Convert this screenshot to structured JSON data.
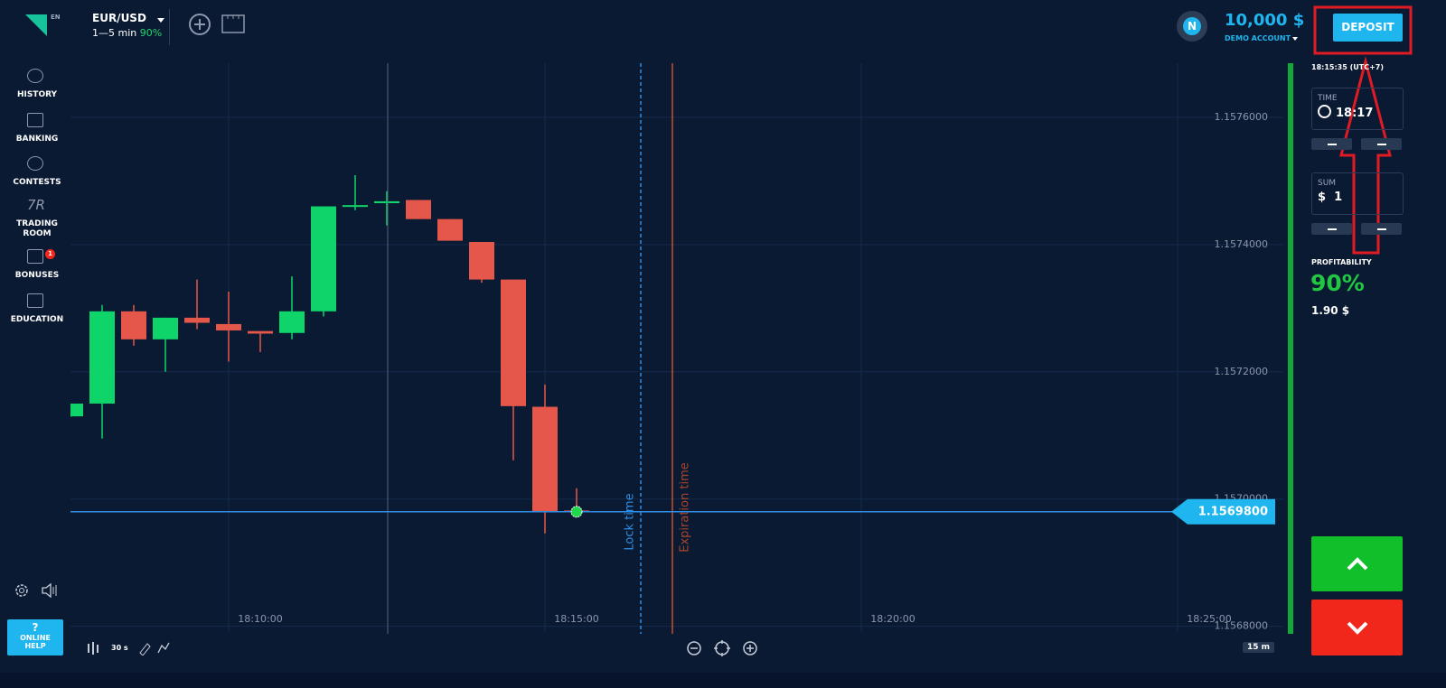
{
  "header": {
    "lang": "EN",
    "pair": "EUR/USD",
    "duration": "1—5 min",
    "payout": "90%",
    "avatar": "N",
    "balance": "10,000 $",
    "account": "DEMO ACCOUNT",
    "deposit": "DEPOSIT"
  },
  "sidebar": {
    "items": [
      "HISTORY",
      "BANKING",
      "CONTESTS",
      "TRADING ROOM",
      "BONUSES",
      "EDUCATION"
    ],
    "tr_icon": "7R",
    "bonus_badge": "1",
    "help_icon": "?",
    "help": "ONLINE HELP"
  },
  "chart": {
    "type": "candlestick",
    "ylim": [
      1.156791,
      1.157685
    ],
    "yticks": [
      {
        "value": 1.1576,
        "label": "1.1576000"
      },
      {
        "value": 1.1574,
        "label": "1.1574000"
      },
      {
        "value": 1.1572,
        "label": "1.1572000"
      },
      {
        "value": 1.157,
        "label": "1.1570000"
      },
      {
        "value": 1.1568,
        "label": "1.1568000"
      }
    ],
    "x_labels": [
      "18:10:00",
      "18:15:00",
      "18:20:00",
      "18:25:00"
    ],
    "current": {
      "value": 1.15698,
      "label": "1.1569800"
    },
    "lock_label": "Lock time",
    "expiry_label": "Expiration time",
    "up_color": "#0fd46a",
    "down_color": "#e4574a",
    "candles": [
      {
        "o": 1.15713,
        "h": 1.15715,
        "l": 1.157129,
        "c": 1.15715
      },
      {
        "o": 1.15715,
        "h": 1.157305,
        "l": 1.157095,
        "c": 1.157295
      },
      {
        "o": 1.157295,
        "h": 1.157305,
        "l": 1.157241,
        "c": 1.157251
      },
      {
        "o": 1.157251,
        "h": 1.157285,
        "l": 1.1572,
        "c": 1.157285
      },
      {
        "o": 1.157285,
        "h": 1.157345,
        "l": 1.157267,
        "c": 1.157277
      },
      {
        "o": 1.157275,
        "h": 1.157326,
        "l": 1.157216,
        "c": 1.157265
      },
      {
        "o": 1.157264,
        "h": 1.157264,
        "l": 1.157231,
        "c": 1.15726
      },
      {
        "o": 1.157261,
        "h": 1.15735,
        "l": 1.157251,
        "c": 1.157295
      },
      {
        "o": 1.157295,
        "h": 1.15746,
        "l": 1.157287,
        "c": 1.15746
      },
      {
        "o": 1.15746,
        "h": 1.157509,
        "l": 1.157454,
        "c": 1.157462
      },
      {
        "o": 1.157465,
        "h": 1.157484,
        "l": 1.15743,
        "c": 1.157468
      },
      {
        "o": 1.15747,
        "h": 1.15747,
        "l": 1.15744,
        "c": 1.15744
      },
      {
        "o": 1.15744,
        "h": 1.15744,
        "l": 1.157406,
        "c": 1.157406
      },
      {
        "o": 1.157404,
        "h": 1.157404,
        "l": 1.15734,
        "c": 1.157345
      },
      {
        "o": 1.157345,
        "h": 1.157345,
        "l": 1.157061,
        "c": 1.157146
      },
      {
        "o": 1.157145,
        "h": 1.15718,
        "l": 1.156946,
        "c": 1.15698
      },
      {
        "o": 1.156982,
        "h": 1.157017,
        "l": 1.156976,
        "c": 1.15698
      }
    ]
  },
  "panel": {
    "clock": "18:15:35 (UTC+7)",
    "time_label": "TIME",
    "time": "18:17",
    "sum_label": "SUM",
    "sum_currency": "$",
    "sum": "1",
    "profit_label": "PROFITABILITY",
    "profit": "90%",
    "profit_amount": "1.90 $"
  },
  "toolbar": {
    "interval": "30 s",
    "timeframe": "15 m"
  }
}
